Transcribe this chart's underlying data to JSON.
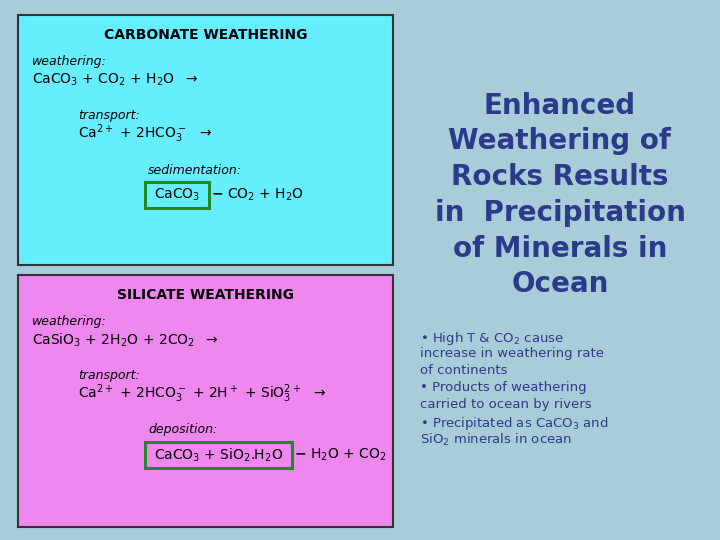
{
  "bg_color": "#a8cdd8",
  "title_text": "Enhanced\nWeathering of\nRocks Results\nin  Precipitation\nof Minerals in\nOcean",
  "title_color": "#2b3a8b",
  "title_fontsize": 20,
  "bullet_color": "#2b3a8b",
  "bullet_fontsize": 9.5,
  "carbonate_bg": "#66eeff",
  "carbonate_border": "#333333",
  "carbonate_title": "CARBONATE WEATHERING",
  "carbonate_title_fontsize": 10,
  "silicate_bg": "#ee88ee",
  "silicate_border": "#333333",
  "silicate_title": "SILICATE WEATHERING",
  "silicate_title_fontsize": 10,
  "box_green": "#228822",
  "equation_fontsize": 10,
  "label_fontsize": 9
}
